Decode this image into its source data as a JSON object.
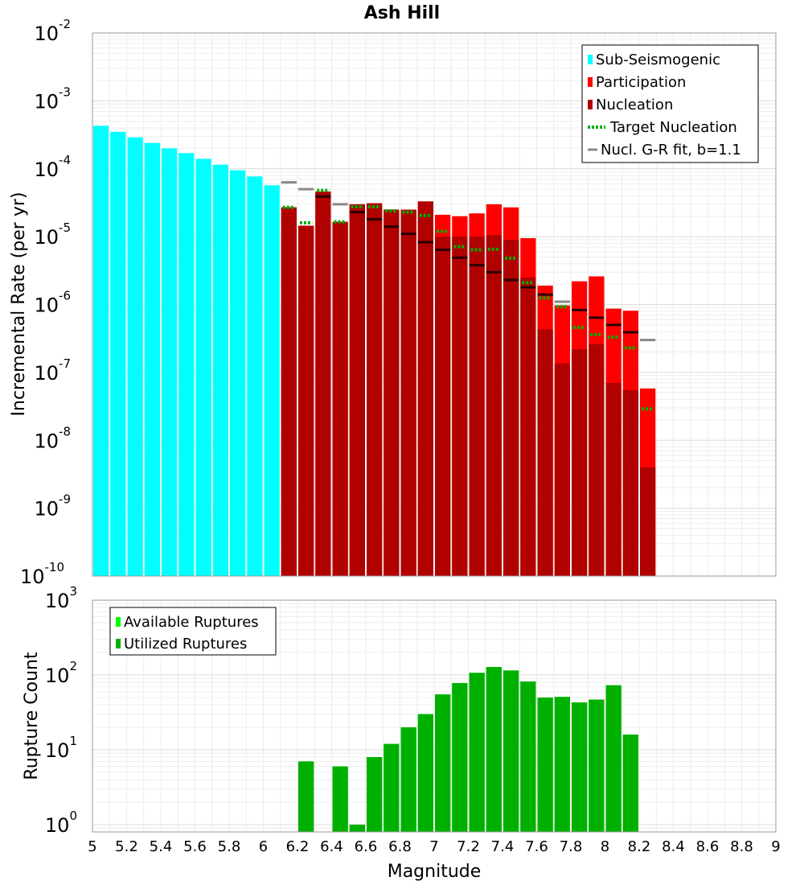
{
  "title": "Ash Hill",
  "chart_data": [
    {
      "type": "bar",
      "ylabel": "Incremental Rate (per yr)",
      "yscale": "log",
      "ylim": [
        1e-10,
        0.01
      ],
      "xlim": [
        5,
        9
      ],
      "bin_width": 0.1,
      "grid": true,
      "legend_position": "top-right",
      "series": [
        {
          "name": "Sub-Seismogenic",
          "style": "bar",
          "color": "#00ffff",
          "x": [
            5.05,
            5.15,
            5.25,
            5.35,
            5.45,
            5.55,
            5.65,
            5.75,
            5.85,
            5.95,
            6.05
          ],
          "values": [
            0.00043,
            0.00035,
            0.00029,
            0.00024,
            0.0002,
            0.00017,
            0.00014,
            0.000115,
            9.5e-05,
            7.7e-05,
            5.7e-05
          ]
        },
        {
          "name": "Participation",
          "style": "bar",
          "color": "#ff0000",
          "x": [
            6.15,
            6.25,
            6.35,
            6.45,
            6.55,
            6.65,
            6.75,
            6.85,
            6.95,
            7.05,
            7.15,
            7.25,
            7.35,
            7.45,
            7.55,
            7.65,
            7.75,
            7.85,
            7.95,
            8.05,
            8.15,
            8.25
          ],
          "values": [
            2.7e-05,
            1.45e-05,
            4.6e-05,
            1.65e-05,
            3e-05,
            3.1e-05,
            2.5e-05,
            2.5e-05,
            3.3e-05,
            2.1e-05,
            2e-05,
            2.2e-05,
            3e-05,
            2.7e-05,
            9.5e-06,
            1.9e-06,
            9.7e-07,
            2.2e-06,
            2.6e-06,
            8.7e-07,
            8.1e-07,
            5.8e-08
          ]
        },
        {
          "name": "Nucleation",
          "style": "bar",
          "color": "#b00000",
          "x": [
            6.15,
            6.25,
            6.35,
            6.45,
            6.55,
            6.65,
            6.75,
            6.85,
            6.95,
            7.05,
            7.15,
            7.25,
            7.35,
            7.45,
            7.55,
            7.65,
            7.75,
            7.85,
            7.95,
            8.05,
            8.15,
            8.25
          ],
          "values": [
            2.7e-05,
            1.45e-05,
            4.6e-05,
            1.65e-05,
            3e-05,
            3.1e-05,
            2.5e-05,
            2.5e-05,
            3.3e-05,
            1e-05,
            1e-05,
            1e-05,
            1.05e-05,
            9e-06,
            2.5e-06,
            4.3e-07,
            1.35e-07,
            2.2e-07,
            2.6e-07,
            7e-08,
            5.5e-08,
            4e-09
          ]
        },
        {
          "name": "Target Nucleation",
          "style": "dotted",
          "color": "#00b000",
          "x": [
            6.15,
            6.25,
            6.35,
            6.45,
            6.55,
            6.65,
            6.75,
            6.85,
            6.95,
            7.05,
            7.15,
            7.25,
            7.35,
            7.45,
            7.55,
            7.65,
            7.75,
            7.85,
            7.95,
            8.05,
            8.15,
            8.25
          ],
          "values": [
            2.7e-05,
            1.6e-05,
            4.8e-05,
            1.65e-05,
            2.75e-05,
            2.75e-05,
            2.4e-05,
            2.3e-05,
            2.05e-05,
            1.2e-05,
            7.1e-06,
            6.4e-06,
            6.5e-06,
            4.8e-06,
            2.1e-06,
            1.25e-06,
            9.3e-07,
            4.6e-07,
            3.6e-07,
            3.3e-07,
            2.3e-07,
            2.9e-08
          ]
        },
        {
          "name": "Nucl. G-R fit, b=1.1",
          "style": "dash",
          "color": "#888888",
          "x": [
            6.15,
            6.25,
            6.35,
            6.45,
            6.55,
            6.65,
            6.75,
            6.85,
            6.95,
            7.05,
            7.15,
            7.25,
            7.35,
            7.45,
            7.55,
            7.65,
            7.75,
            7.85,
            7.95,
            8.05,
            8.15,
            8.25
          ],
          "values": [
            6.3e-05,
            5e-05,
            3.9e-05,
            3e-05,
            2.3e-05,
            1.8e-05,
            1.4e-05,
            1.1e-05,
            8.3e-06,
            6.4e-06,
            4.9e-06,
            3.8e-06,
            3e-06,
            2.3e-06,
            1.8e-06,
            1.4e-06,
            1.1e-06,
            8.3e-07,
            6.4e-07,
            5e-07,
            3.9e-07,
            3e-07
          ]
        }
      ]
    },
    {
      "type": "bar",
      "xlabel": "Magnitude",
      "ylabel": "Rupture Count",
      "yscale": "log",
      "ylim": [
        0.8,
        1000
      ],
      "xlim": [
        5,
        9
      ],
      "grid": true,
      "legend_position": "top-left",
      "xticks": [
        "5",
        "5.2",
        "5.4",
        "5.6",
        "5.8",
        "6",
        "6.2",
        "6.4",
        "6.6",
        "6.8",
        "7",
        "7.2",
        "7.4",
        "7.6",
        "7.8",
        "8",
        "8.2",
        "8.4",
        "8.6",
        "8.8",
        "9"
      ],
      "series": [
        {
          "name": "Available Ruptures",
          "style": "bar",
          "color": "#00ff00",
          "x": [
            6.25,
            6.45,
            6.55,
            6.65,
            6.75,
            6.85,
            6.95,
            7.05,
            7.15,
            7.25,
            7.35,
            7.45,
            7.55,
            7.65,
            7.75,
            7.85,
            7.95,
            8.05,
            8.15
          ],
          "values": [
            7,
            6,
            1,
            8,
            12,
            20,
            30,
            55,
            78,
            107,
            128,
            115,
            82,
            50,
            51,
            43,
            47,
            73,
            16
          ]
        },
        {
          "name": "Utilized Ruptures",
          "style": "bar",
          "color": "#00b000",
          "x": [
            6.25,
            6.45,
            6.55,
            6.65,
            6.75,
            6.85,
            6.95,
            7.05,
            7.15,
            7.25,
            7.35,
            7.45,
            7.55,
            7.65,
            7.75,
            7.85,
            7.95,
            8.05,
            8.15
          ],
          "values": [
            7,
            6,
            1,
            8,
            12,
            20,
            30,
            55,
            78,
            107,
            128,
            115,
            82,
            50,
            51,
            43,
            47,
            73,
            16
          ]
        }
      ]
    }
  ]
}
